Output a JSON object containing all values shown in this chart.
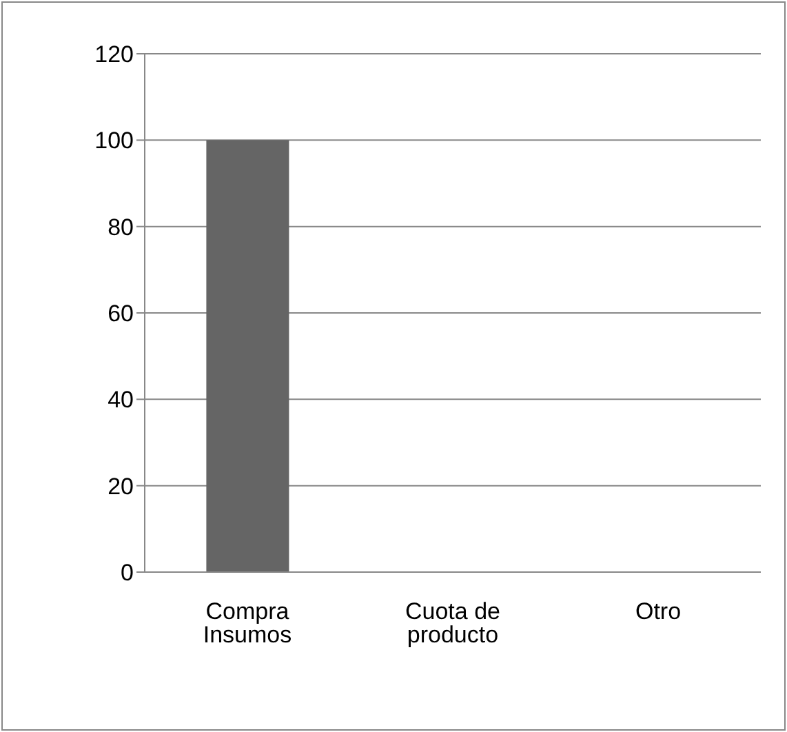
{
  "chart_data": {
    "type": "bar",
    "categories": [
      "Compra Insumos",
      "Cuota de producto",
      "Otro"
    ],
    "values": [
      100,
      0,
      0
    ],
    "color": "#656565",
    "ylim": [
      0,
      120
    ],
    "yticks": [
      0,
      20,
      40,
      60,
      80,
      100,
      120
    ],
    "grid": "y"
  }
}
